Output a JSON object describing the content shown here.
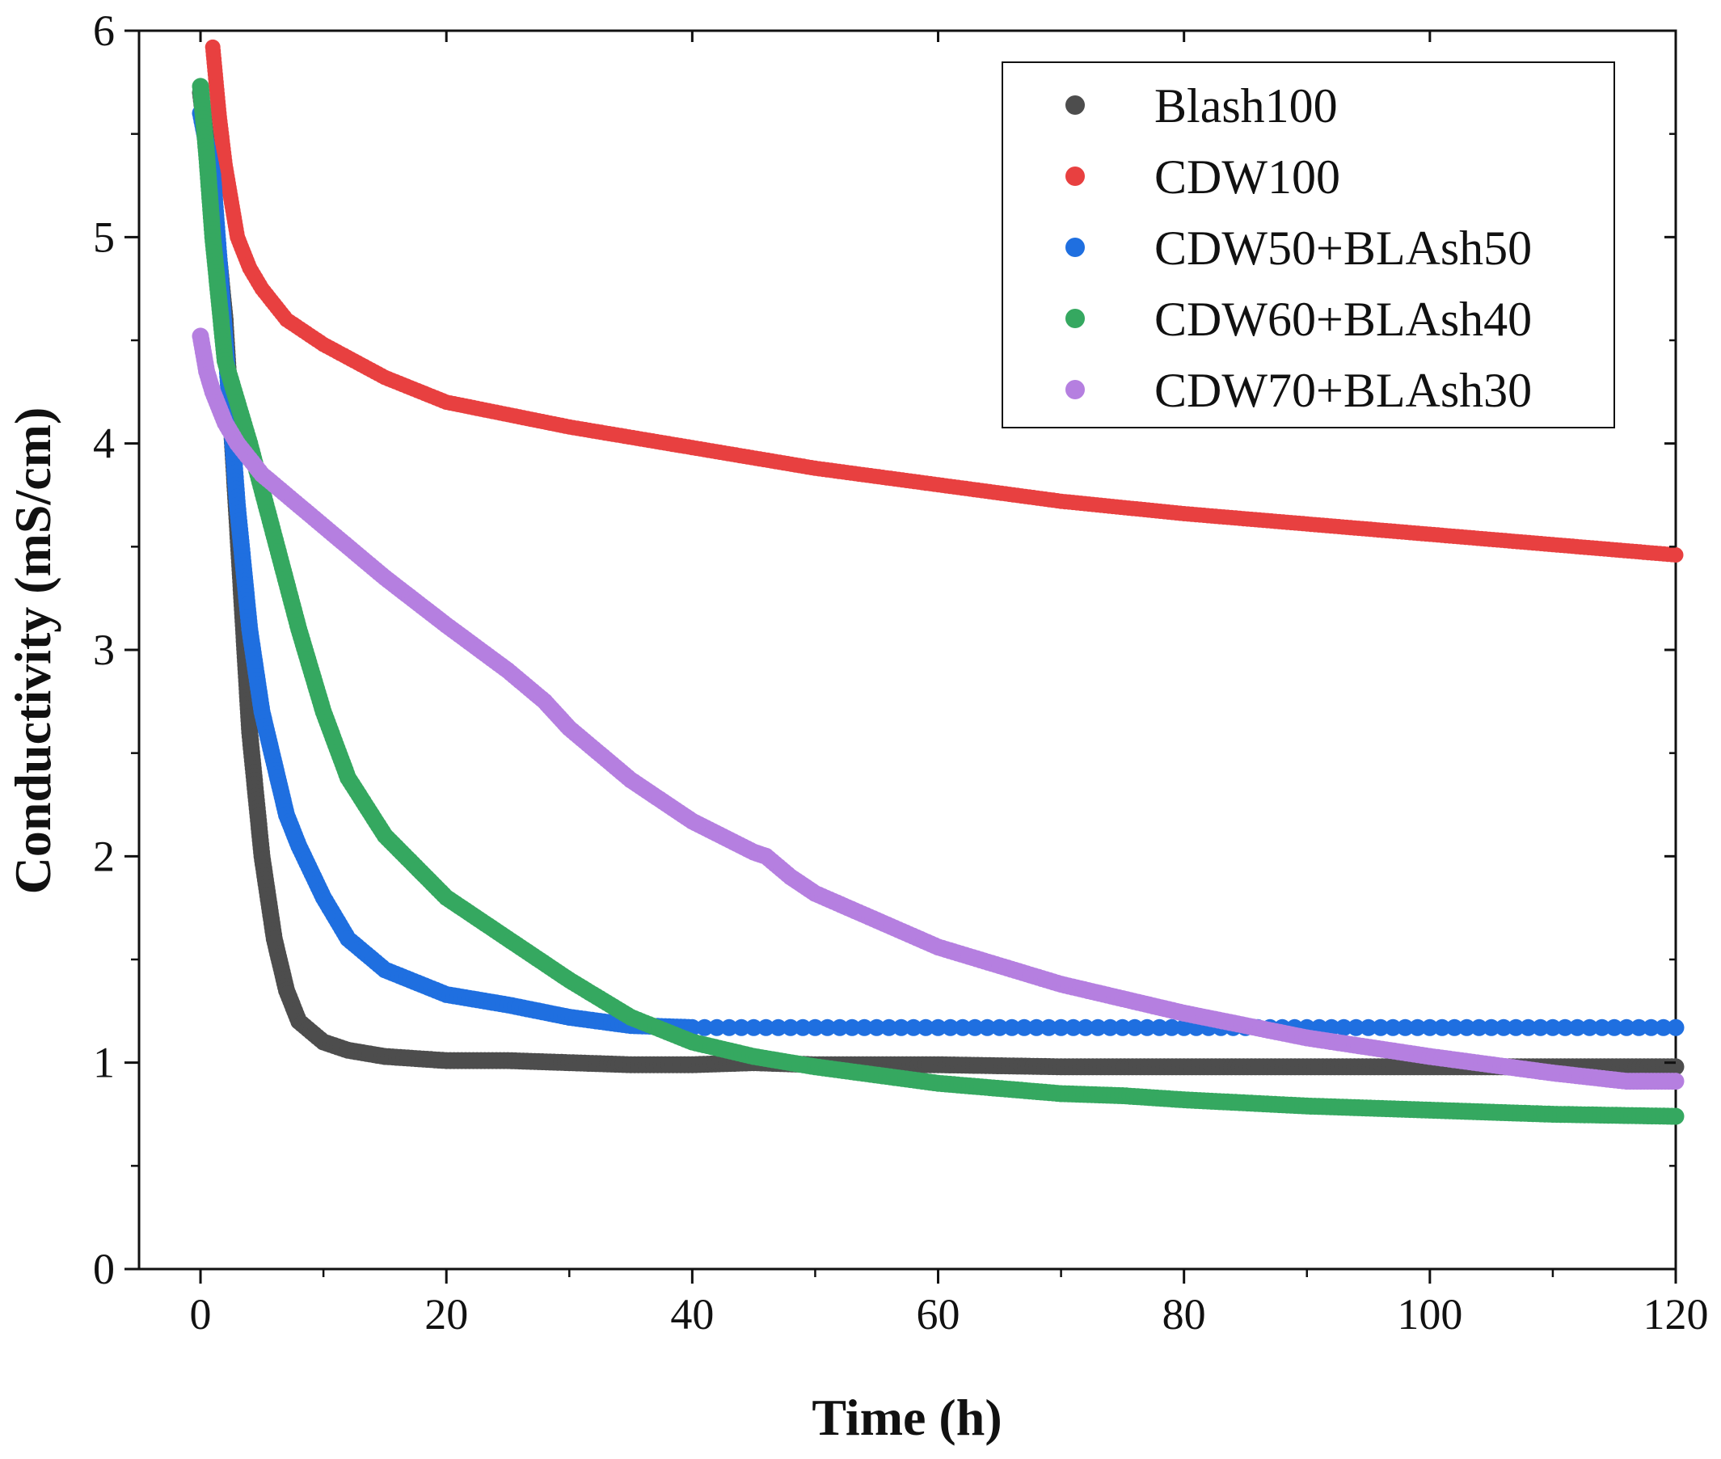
{
  "chart_data": {
    "type": "scatter",
    "title": "",
    "xlabel": "Time (h)",
    "ylabel": "Conductivity (mS/cm)",
    "xlim": [
      -5,
      120
    ],
    "ylim": [
      0,
      6
    ],
    "xticks": [
      "0",
      "20",
      "40",
      "60",
      "80",
      "100",
      "120"
    ],
    "yticks": [
      "0",
      "1",
      "2",
      "3",
      "4",
      "5",
      "6"
    ],
    "legend_position": "top-right",
    "grid": false,
    "series": [
      {
        "name": "Blash100",
        "color": "#4d4d4d",
        "x": [
          0,
          1,
          2,
          3,
          4,
          5,
          6,
          7,
          8,
          10,
          12,
          15,
          20,
          25,
          30,
          35,
          40,
          45,
          50,
          60,
          70,
          80,
          90,
          100,
          110,
          120
        ],
        "y": [
          5.7,
          5.2,
          4.6,
          3.6,
          2.6,
          2.0,
          1.6,
          1.35,
          1.2,
          1.1,
          1.06,
          1.03,
          1.01,
          1.01,
          1.0,
          0.99,
          0.99,
          1.0,
          0.99,
          0.99,
          0.98,
          0.98,
          0.98,
          0.98,
          0.98,
          0.98
        ]
      },
      {
        "name": "CDW100",
        "color": "#e84040",
        "x": [
          1,
          1.5,
          2,
          3,
          4,
          5,
          7,
          10,
          15,
          20,
          30,
          40,
          50,
          60,
          70,
          80,
          90,
          100,
          110,
          120
        ],
        "y": [
          5.92,
          5.6,
          5.35,
          5.0,
          4.85,
          4.75,
          4.6,
          4.48,
          4.32,
          4.2,
          4.08,
          3.98,
          3.88,
          3.8,
          3.72,
          3.66,
          3.61,
          3.56,
          3.51,
          3.46
        ]
      },
      {
        "name": "CDW50+BLAsh50",
        "color": "#1f6fe0",
        "x": [
          0,
          1,
          2,
          3,
          4,
          5,
          6,
          7,
          8,
          10,
          12,
          15,
          20,
          25,
          30,
          35,
          40,
          50,
          60,
          70,
          80,
          90,
          100,
          110,
          120
        ],
        "y": [
          5.6,
          5.3,
          4.5,
          3.7,
          3.1,
          2.7,
          2.45,
          2.2,
          2.05,
          1.8,
          1.6,
          1.45,
          1.33,
          1.28,
          1.22,
          1.18,
          1.17,
          1.17,
          1.17,
          1.17,
          1.17,
          1.17,
          1.17,
          1.17,
          1.17
        ]
      },
      {
        "name": "CDW60+BLAsh40",
        "color": "#35a860",
        "x": [
          0,
          0.5,
          1,
          2,
          3,
          4,
          6,
          8,
          10,
          12,
          15,
          20,
          25,
          30,
          35,
          40,
          45,
          50,
          60,
          70,
          75,
          80,
          90,
          100,
          110,
          120
        ],
        "y": [
          5.73,
          5.4,
          5.0,
          4.4,
          4.2,
          4.0,
          3.55,
          3.1,
          2.7,
          2.38,
          2.1,
          1.8,
          1.6,
          1.4,
          1.22,
          1.1,
          1.03,
          0.98,
          0.9,
          0.85,
          0.84,
          0.82,
          0.79,
          0.77,
          0.75,
          0.74
        ]
      },
      {
        "name": "CDW70+BLAsh30",
        "color": "#b57fe0",
        "x": [
          0,
          0.5,
          1,
          2,
          3,
          5,
          8,
          10,
          15,
          20,
          25,
          28,
          30,
          35,
          40,
          45,
          46,
          48,
          50,
          60,
          70,
          80,
          90,
          100,
          110,
          116,
          118,
          120
        ],
        "y": [
          4.52,
          4.35,
          4.25,
          4.1,
          4.0,
          3.85,
          3.7,
          3.6,
          3.35,
          3.12,
          2.9,
          2.75,
          2.62,
          2.37,
          2.17,
          2.02,
          2.0,
          1.9,
          1.82,
          1.56,
          1.38,
          1.24,
          1.12,
          1.03,
          0.95,
          0.91,
          0.91,
          0.91
        ]
      }
    ]
  }
}
